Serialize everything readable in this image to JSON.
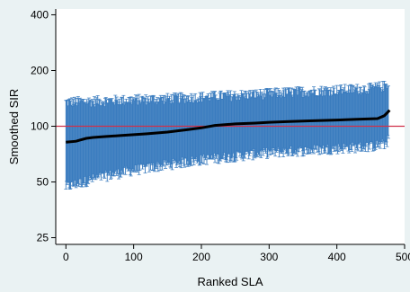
{
  "chart_data": {
    "type": "line",
    "title": "",
    "xlabel": "Ranked SLA",
    "ylabel": "Smoothed SIR",
    "x_ticks": [
      0,
      100,
      200,
      300,
      400,
      500
    ],
    "x_tick_labels": [
      "0",
      "100",
      "200",
      "300",
      "400",
      "500"
    ],
    "y_ticks": [
      25,
      50,
      100,
      200,
      400
    ],
    "y_tick_labels": [
      "25",
      "50",
      "100",
      "200",
      "400"
    ],
    "xlim": [
      -15,
      500
    ],
    "ylim": [
      23,
      430
    ],
    "y_scale": "log",
    "grid": false,
    "legend": "none",
    "reference_line": {
      "y": 100,
      "color": "#d0304a"
    },
    "n_areas": 477,
    "series": [
      {
        "role": "estimate",
        "color": "#000000",
        "x": [
          0,
          15,
          20,
          30,
          40,
          60,
          80,
          100,
          120,
          150,
          180,
          200,
          220,
          250,
          280,
          300,
          330,
          360,
          400,
          430,
          460,
          470,
          478
        ],
        "y": [
          82,
          83,
          84,
          86,
          87,
          88,
          89,
          90,
          91,
          93,
          96,
          98,
          101,
          103,
          104,
          105,
          106,
          107,
          108,
          109,
          110,
          114,
          122
        ]
      },
      {
        "role": "interval_upper",
        "color": "#3a7cbf",
        "x": [
          0,
          50,
          100,
          150,
          200,
          250,
          300,
          350,
          400,
          450,
          470,
          478
        ],
        "y": [
          135,
          137,
          139,
          141,
          144,
          147,
          150,
          154,
          157,
          160,
          165,
          175
        ]
      },
      {
        "role": "interval_lower",
        "color": "#3a7cbf",
        "x": [
          0,
          50,
          100,
          150,
          200,
          250,
          300,
          350,
          400,
          450,
          470,
          478
        ],
        "y": [
          47,
          53,
          58,
          62,
          66,
          69,
          72,
          74,
          76,
          78,
          80,
          86
        ]
      }
    ]
  },
  "colors": {
    "background": "#eaf2f3",
    "plot_background": "#ffffff",
    "errorbar": "#3a7cbf",
    "estimate": "#000000",
    "reference": "#d0304a"
  }
}
